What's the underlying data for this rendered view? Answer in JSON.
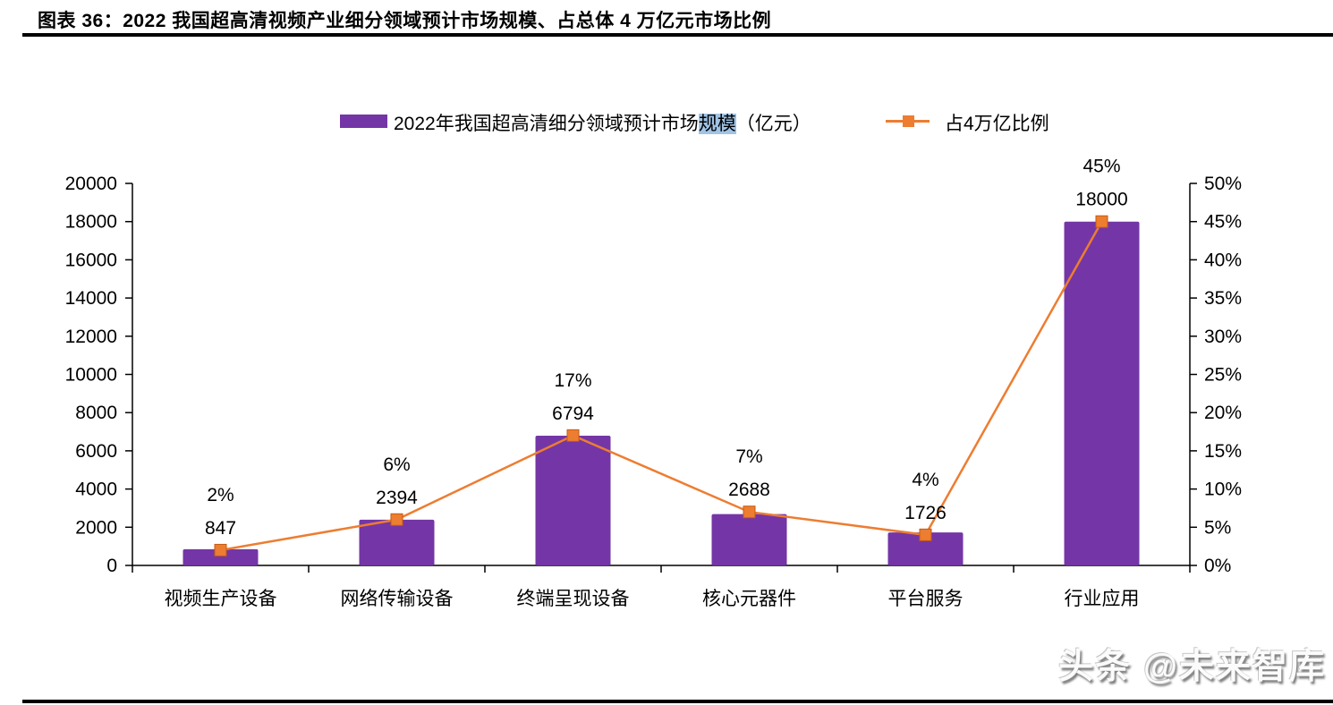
{
  "title": "图表 36：2022 我国超高清视频产业细分领域预计市场规模、占总体 4 万亿元市场比例",
  "legend": {
    "series1": {
      "prefix": "2022年我国超高清细分领域预计市场",
      "highlight": "规模",
      "suffix": "（亿元）",
      "highlight_color": "#A0C4E6"
    },
    "series2": {
      "label": "占4万亿比例"
    }
  },
  "watermark": "头条 @未来智库",
  "chart_data": {
    "type": "bar",
    "subtype": "bar+line combo, dual axis",
    "title": "2022 我国超高清视频产业细分领域预计市场规模、占总体 4 万亿元市场比例",
    "categories": [
      "视频生产设备",
      "网络传输设备",
      "终端呈现设备",
      "核心元器件",
      "平台服务",
      "行业应用"
    ],
    "series": [
      {
        "name": "2022年我国超高清细分领域预计市场规模（亿元）",
        "type": "bar",
        "axis": "left",
        "color": "#7436A6",
        "values": [
          847,
          2394,
          6794,
          2688,
          1726,
          18000
        ]
      },
      {
        "name": "占4万亿比例",
        "type": "line",
        "axis": "right",
        "color": "#ED7D31",
        "marker": "square",
        "marker_stroke": "#C55A11",
        "values": [
          2,
          6,
          17,
          7,
          4,
          45
        ],
        "unit": "%"
      }
    ],
    "left_axis": {
      "min": 0,
      "max": 20000,
      "step": 2000
    },
    "right_axis": {
      "min": 0,
      "max": 50,
      "step": 5,
      "suffix": "%"
    },
    "grid": false,
    "legend_position": "top"
  }
}
